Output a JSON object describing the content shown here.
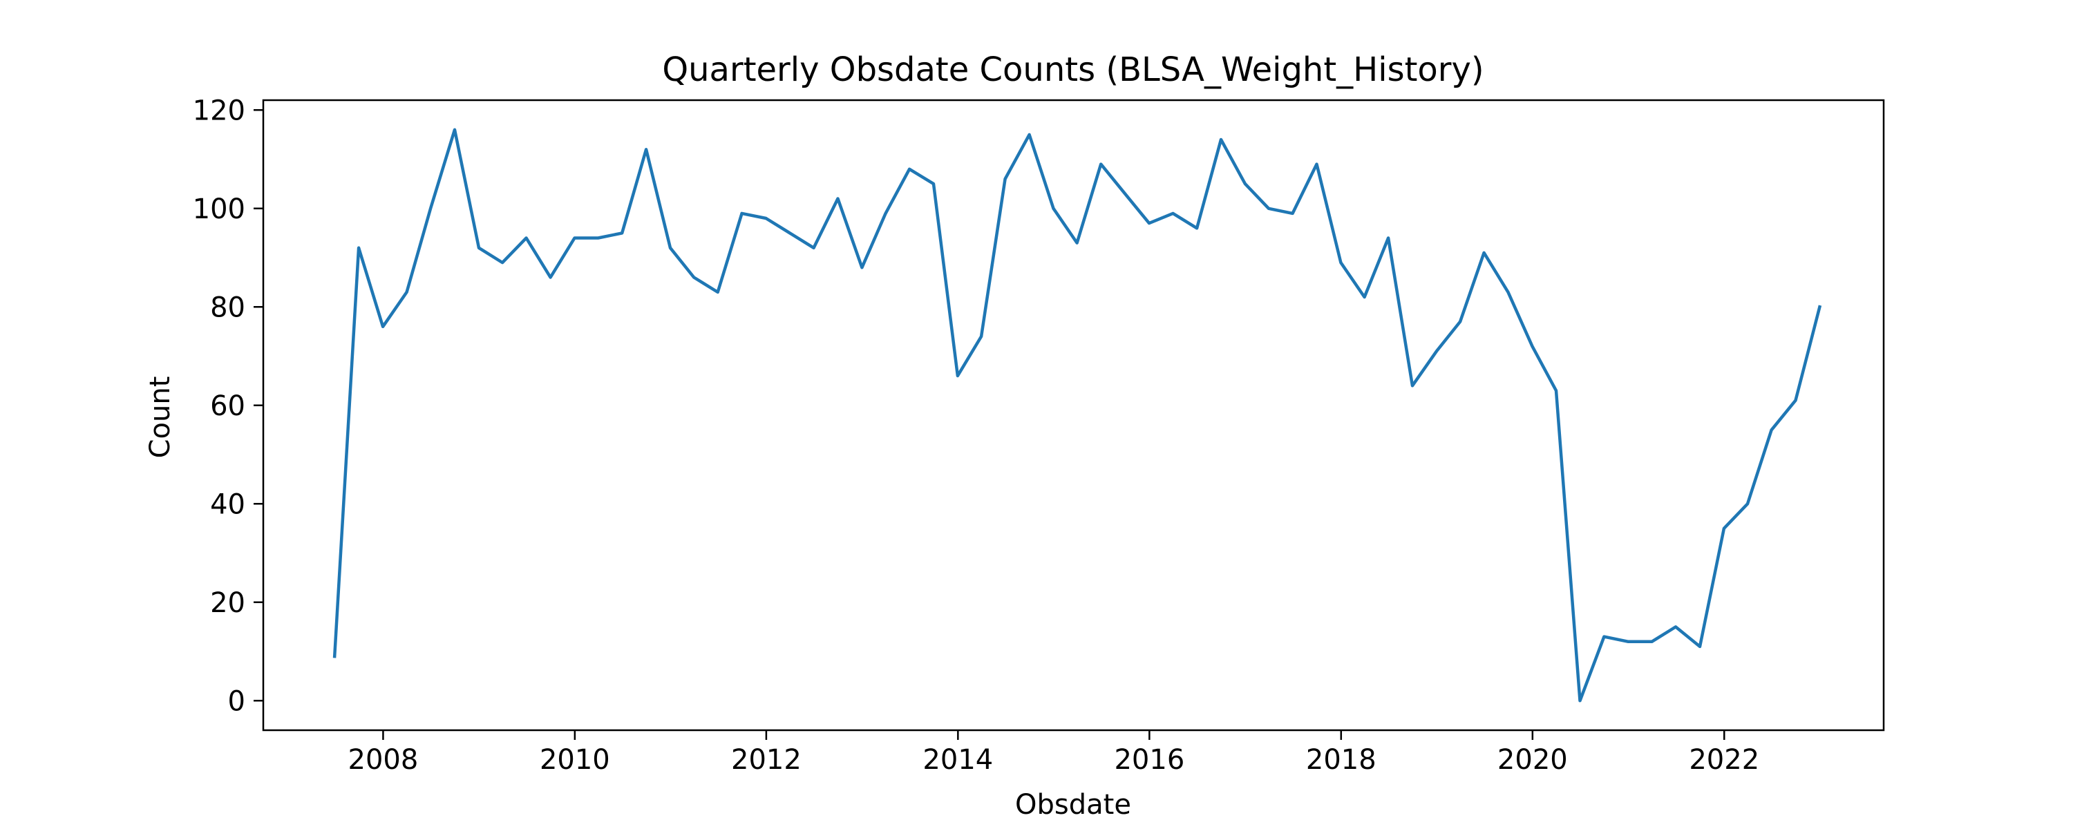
{
  "chart_data": {
    "type": "line",
    "title": "Quarterly Obsdate Counts (BLSA_Weight_History)",
    "xlabel": "Obsdate",
    "ylabel": "Count",
    "x_ticks": [
      "2008",
      "2010",
      "2012",
      "2014",
      "2016",
      "2018",
      "2020",
      "2022"
    ],
    "y_ticks": [
      "0",
      "20",
      "40",
      "60",
      "80",
      "100",
      "120"
    ],
    "xlim": [
      "2006-10-01",
      "2023-09-01"
    ],
    "ylim": [
      -6,
      122
    ],
    "grid": false,
    "legend": "none",
    "line_color": "#1f77b4",
    "series": [
      {
        "x": [
          "2007-06-30",
          "2007-09-30",
          "2007-12-31",
          "2008-03-31",
          "2008-06-30",
          "2008-09-30",
          "2008-12-31",
          "2009-03-31",
          "2009-06-30",
          "2009-09-30",
          "2009-12-31",
          "2010-03-31",
          "2010-06-30",
          "2010-09-30",
          "2010-12-31",
          "2011-03-31",
          "2011-06-30",
          "2011-09-30",
          "2011-12-31",
          "2012-03-31",
          "2012-06-30",
          "2012-09-30",
          "2012-12-31",
          "2013-03-31",
          "2013-06-30",
          "2013-09-30",
          "2013-12-31",
          "2014-03-31",
          "2014-06-30",
          "2014-09-30",
          "2014-12-31",
          "2015-03-31",
          "2015-06-30",
          "2015-09-30",
          "2015-12-31",
          "2016-03-31",
          "2016-06-30",
          "2016-09-30",
          "2016-12-31",
          "2017-03-31",
          "2017-06-30",
          "2017-09-30",
          "2017-12-31",
          "2018-03-31",
          "2018-06-30",
          "2018-09-30",
          "2018-12-31",
          "2019-03-31",
          "2019-06-30",
          "2019-09-30",
          "2019-12-31",
          "2020-03-31",
          "2020-06-30",
          "2020-09-30",
          "2020-12-31",
          "2021-03-31",
          "2021-06-30",
          "2021-09-30",
          "2021-12-31",
          "2022-03-31",
          "2022-06-30",
          "2022-09-30",
          "2022-12-31"
        ],
        "values": [
          9,
          92,
          76,
          83,
          100,
          116,
          92,
          89,
          94,
          86,
          94,
          94,
          95,
          112,
          92,
          86,
          83,
          99,
          98,
          95,
          92,
          102,
          88,
          99,
          108,
          105,
          66,
          74,
          106,
          115,
          100,
          93,
          109,
          103,
          97,
          99,
          96,
          114,
          105,
          100,
          99,
          109,
          89,
          82,
          94,
          64,
          71,
          77,
          91,
          83,
          72,
          63,
          0,
          13,
          12,
          12,
          15,
          11,
          35,
          40,
          55,
          61,
          80
        ]
      }
    ]
  }
}
